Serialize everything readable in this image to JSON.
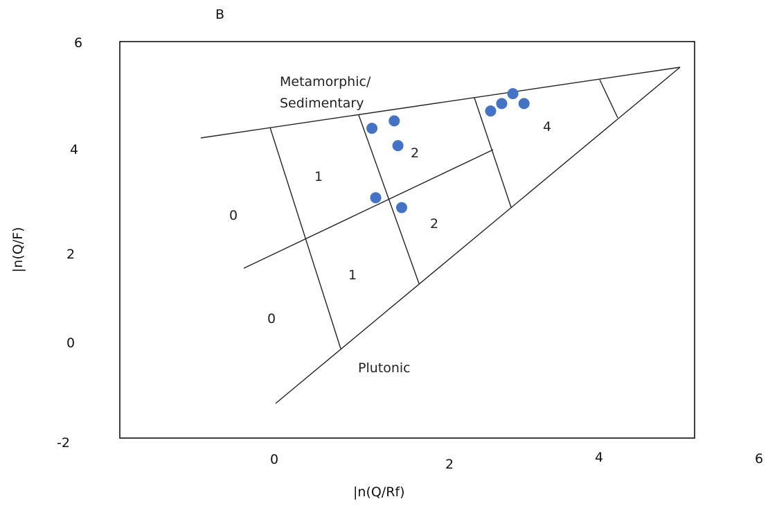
{
  "chart_data": {
    "type": "scatter",
    "panel_label": "B",
    "xlabel": "|n(Q/Rf)",
    "ylabel": "|n(Q/F)",
    "x_ticks": [
      "0",
      "2",
      "4",
      "6"
    ],
    "y_ticks": [
      "6",
      "4",
      "2",
      "0",
      "-2"
    ],
    "xlim": [
      -1.75,
      6
    ],
    "ylim": [
      -2,
      6
    ],
    "grid": false,
    "legend": "none",
    "colors": {
      "points": "#4472C4",
      "lines": "#222222"
    },
    "region_labels": {
      "metamorphic": [
        "Metamorphic/",
        "Sedimentary"
      ],
      "plutonic": "Plutonic",
      "zones": [
        "0",
        "1",
        "2",
        "0",
        "1",
        "2",
        "4"
      ]
    },
    "series": [
      {
        "points": [
          {
            "x": 1.65,
            "y": 4.25
          },
          {
            "x": 1.95,
            "y": 4.4
          },
          {
            "x": 2.0,
            "y": 3.9
          },
          {
            "x": 1.7,
            "y": 2.85
          },
          {
            "x": 2.05,
            "y": 2.65
          },
          {
            "x": 3.25,
            "y": 4.6
          },
          {
            "x": 3.4,
            "y": 4.75
          },
          {
            "x": 3.55,
            "y": 4.95
          },
          {
            "x": 3.7,
            "y": 4.75
          }
        ]
      }
    ]
  }
}
